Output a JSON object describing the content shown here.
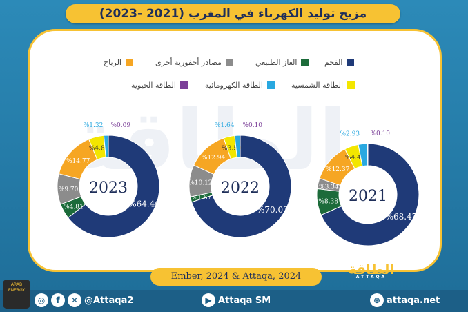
{
  "title": "مزيج توليد الكهرباء في المغرب (2021 -2023)",
  "legend": [
    {
      "label": "الفحم",
      "color": "#1f3a78"
    },
    {
      "label": "الغاز الطبيعي",
      "color": "#1c6b3a"
    },
    {
      "label": "مصادر أحفورية أخرى",
      "color": "#8c8c8c"
    },
    {
      "label": "الرياح",
      "color": "#f6a623"
    },
    {
      "label": "الطاقة الشمسية",
      "color": "#f3e600"
    },
    {
      "label": "الطاقة الكهرومائية",
      "color": "#29a8e0"
    },
    {
      "label": "الطاقة الحيوية",
      "color": "#7b3f98"
    }
  ],
  "chart_data": [
    {
      "type": "pie",
      "center_label": "2021",
      "categories": [
        "الفحم",
        "الغاز الطبيعي",
        "مصادر أحفورية أخرى",
        "الرياح",
        "الطاقة الشمسية",
        "الطاقة الكهرومائية",
        "الطاقة الحيوية"
      ],
      "values": [
        68.47,
        8.38,
        3.34,
        12.37,
        4.41,
        2.93,
        0.1
      ],
      "labels": [
        "%68.47",
        "%8.38",
        "%3.34",
        "%12.37",
        "%4.41",
        "%2.93",
        "%0.10"
      ]
    },
    {
      "type": "pie",
      "center_label": "2022",
      "categories": [
        "الفحم",
        "الغاز الطبيعي",
        "مصادر أحفورية أخرى",
        "الرياح",
        "الطاقة الشمسية",
        "الطاقة الكهرومائية",
        "الطاقة الحيوية"
      ],
      "values": [
        70.03,
        1.67,
        10.12,
        12.94,
        3.5,
        1.64,
        0.1
      ],
      "labels": [
        "%70.03",
        "%1.67",
        "%10.12",
        "%12.94",
        "%3.50",
        "%1.64",
        "%0.10"
      ]
    },
    {
      "type": "pie",
      "center_label": "2023",
      "categories": [
        "الفحم",
        "الغاز الطبيعي",
        "مصادر أحفورية أخرى",
        "الرياح",
        "الطاقة الشمسية",
        "الطاقة الكهرومائية",
        "الطاقة الحيوية"
      ],
      "values": [
        64.46,
        4.81,
        9.7,
        14.77,
        4.84,
        1.32,
        0.09
      ],
      "labels": [
        "%64.46",
        "%4.81",
        "%9.70",
        "%14.77",
        "%4.84",
        "%1.32",
        "%0.09"
      ]
    }
  ],
  "source": "Ember, 2024 & Attaqa, 2024",
  "logo_text": "الطاقة",
  "logo_sub": "ATTAQA",
  "watermark": "الطاقة",
  "footer": {
    "twitter_handle": "@Attaqa2",
    "youtube": "Attaqa SM",
    "website": "attaqa.net"
  },
  "badge_text": "ARAB ENERGY"
}
